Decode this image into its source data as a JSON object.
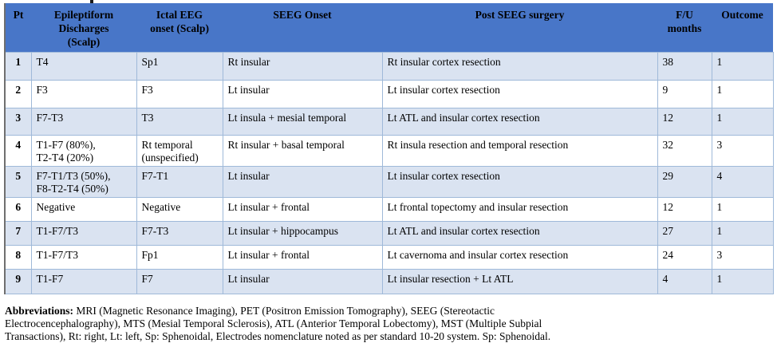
{
  "colors": {
    "header_bg": "#4876C8",
    "band_bg": "#DAE3F1",
    "border": "#9FB9D9",
    "outer_border": "#6F6F6F"
  },
  "table": {
    "columns": [
      {
        "label": "Pt"
      },
      {
        "label": "Epileptiform\nDischarges\n(Scalp)"
      },
      {
        "label": "Ictal EEG\nonset (Scalp)"
      },
      {
        "label": "SEEG Onset"
      },
      {
        "label": "Post SEEG surgery"
      },
      {
        "label": "F/U\nmonths"
      },
      {
        "label": "Outcome"
      }
    ],
    "rows": [
      {
        "pt": "1",
        "epileptiform": "T4",
        "ictal": "Sp1",
        "seeg": "Rt insular",
        "surgery": "Rt insular cortex resection",
        "fu": "38",
        "outcome": "1"
      },
      {
        "pt": "2",
        "epileptiform": "F3",
        "ictal": "F3",
        "seeg": "Lt insular",
        "surgery": "Lt insular cortex resection",
        "fu": "9",
        "outcome": "1"
      },
      {
        "pt": "3",
        "epileptiform": "F7-T3",
        "ictal": "T3",
        "seeg": "Lt insula + mesial temporal",
        "surgery": "Lt ATL and insular cortex resection",
        "fu": "12",
        "outcome": "1"
      },
      {
        "pt": "4",
        "epileptiform": "T1-F7 (80%),\nT2-T4 (20%)",
        "ictal": "Rt temporal\n(unspecified)",
        "seeg": "Rt insular + basal temporal",
        "surgery": "Rt insula resection and temporal resection",
        "fu": "32",
        "outcome": "3"
      },
      {
        "pt": "5",
        "epileptiform": "F7-T1/T3 (50%),\nF8-T2-T4 (50%)",
        "ictal": "F7-T1",
        "seeg": "Lt insular",
        "surgery": "Lt insular cortex resection",
        "fu": "29",
        "outcome": "4"
      },
      {
        "pt": "6",
        "epileptiform": "Negative",
        "ictal": "Negative",
        "seeg": "Lt insular + frontal",
        "surgery": "Lt frontal topectomy and insular resection",
        "fu": "12",
        "outcome": "1"
      },
      {
        "pt": "7",
        "epileptiform": "T1-F7/T3",
        "ictal": "F7-T3",
        "seeg": "Lt insular + hippocampus",
        "surgery": "Lt ATL and insular cortex resection",
        "fu": "27",
        "outcome": "1"
      },
      {
        "pt": "8",
        "epileptiform": "T1-F7/T3",
        "ictal": "Fp1",
        "seeg": "Lt insular + frontal",
        "surgery": "Lt cavernoma and insular cortex resection",
        "fu": "24",
        "outcome": "3"
      },
      {
        "pt": "9",
        "epileptiform": "T1-F7",
        "ictal": "F7",
        "seeg": "Lt insular",
        "surgery": "Lt insular resection + Lt ATL",
        "fu": "4",
        "outcome": "1"
      }
    ]
  },
  "footnote": {
    "label": "Abbreviations:",
    "lines": [
      "MRI (Magnetic Resonance Imaging), PET (Positron Emission Tomography), SEEG (Stereotactic",
      "Electrocencephalography), MTS (Mesial Temporal Sclerosis), ATL (Anterior Temporal Lobectomy), MST (Multiple Subpial",
      "Transactions), Rt: right, Lt: left, Sp: Sphenoidal, Electrodes nomenclature noted as per standard 10-20 system. Sp: Sphenoidal."
    ]
  }
}
